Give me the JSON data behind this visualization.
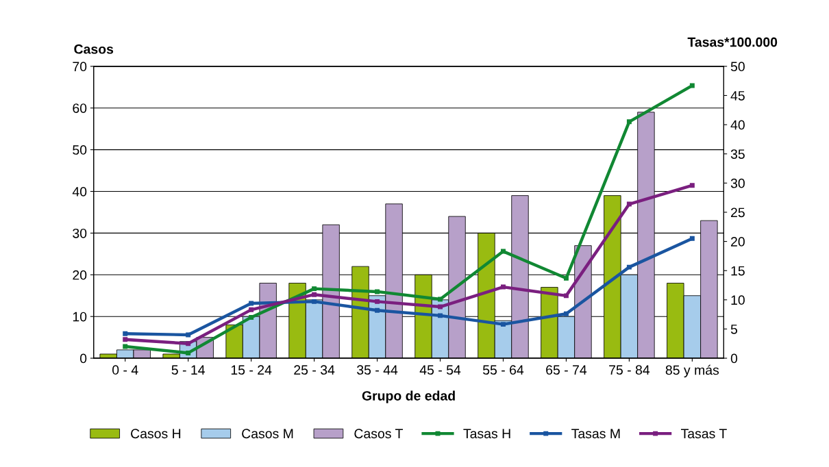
{
  "chart_data": {
    "type": "bar",
    "xlabel": "Grupo de edad",
    "ylabel": "Casos",
    "y2label": "Tasas*100.000",
    "categories": [
      "0 - 4",
      "5 - 14",
      "15 - 24",
      "25 - 34",
      "35 - 44",
      "45 - 54",
      "55 - 64",
      "65 - 74",
      "75 - 84",
      "85 y más"
    ],
    "series": [
      {
        "name": "Casos H",
        "color": "#99bb11",
        "values": [
          1,
          1,
          8,
          18,
          22,
          20,
          30,
          17,
          39,
          18
        ]
      },
      {
        "name": "Casos M",
        "color": "#a6cceb",
        "values": [
          2,
          4,
          10,
          14,
          15,
          14,
          9,
          10,
          20,
          15
        ]
      },
      {
        "name": "Casos T",
        "color": "#b7a0c9",
        "values": [
          2,
          5,
          18,
          32,
          37,
          34,
          39,
          27,
          59,
          33
        ]
      },
      {
        "name": "Tasas H",
        "type": "line",
        "axis": "y2",
        "color": "#118833",
        "values": [
          2.0,
          0.9,
          7.0,
          11.9,
          11.4,
          10.1,
          18.3,
          13.7,
          40.5,
          46.7
        ]
      },
      {
        "name": "Tasas M",
        "type": "line",
        "axis": "y2",
        "color": "#1a55a0",
        "values": [
          4.2,
          4.0,
          9.4,
          9.7,
          8.2,
          7.3,
          5.8,
          7.6,
          15.6,
          20.5
        ]
      },
      {
        "name": "Tasas T",
        "type": "line",
        "axis": "y2",
        "color": "#7a1f7f",
        "values": [
          3.2,
          2.5,
          8.3,
          10.9,
          9.7,
          8.8,
          12.2,
          10.7,
          26.4,
          29.6
        ]
      }
    ],
    "ylim": [
      0,
      70
    ],
    "yticks": [
      0,
      10,
      20,
      30,
      40,
      50,
      60,
      70
    ],
    "y2lim": [
      0,
      50
    ],
    "y2ticks": [
      0,
      5,
      10,
      15,
      20,
      25,
      30,
      35,
      40,
      45,
      50
    ],
    "grid": "y",
    "legend": "bottom",
    "marker": "square"
  }
}
